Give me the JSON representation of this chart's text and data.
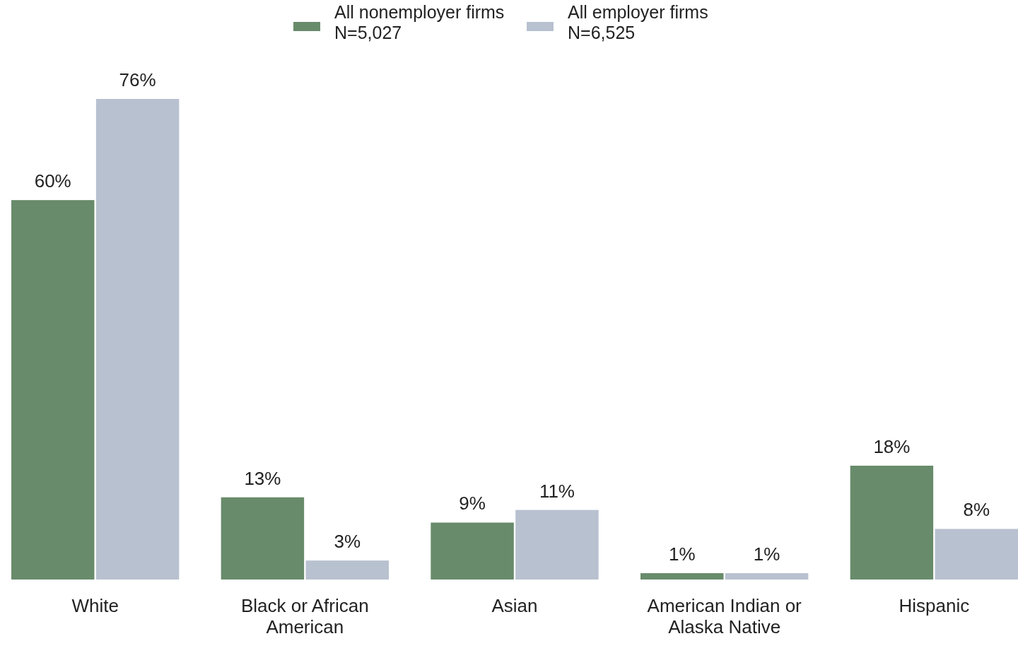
{
  "chart_data": {
    "type": "bar",
    "categories": [
      "White",
      "Black or African American",
      "Asian",
      "American Indian or Alaska Native",
      "Hispanic"
    ],
    "series": [
      {
        "name": "All nonemployer firms\nN=5,027",
        "color": "#688b6b",
        "values": [
          60,
          13,
          9,
          1,
          18
        ],
        "value_labels": [
          "60%",
          "13%",
          "9%",
          "1%",
          "18%"
        ]
      },
      {
        "name": "All employer firms\nN=6,525",
        "color": "#b8c1cf",
        "values": [
          76,
          3,
          11,
          1,
          8
        ],
        "value_labels": [
          "76%",
          "3%",
          "11%",
          "1%",
          "8%"
        ]
      }
    ],
    "legend": "top",
    "grid": false
  }
}
